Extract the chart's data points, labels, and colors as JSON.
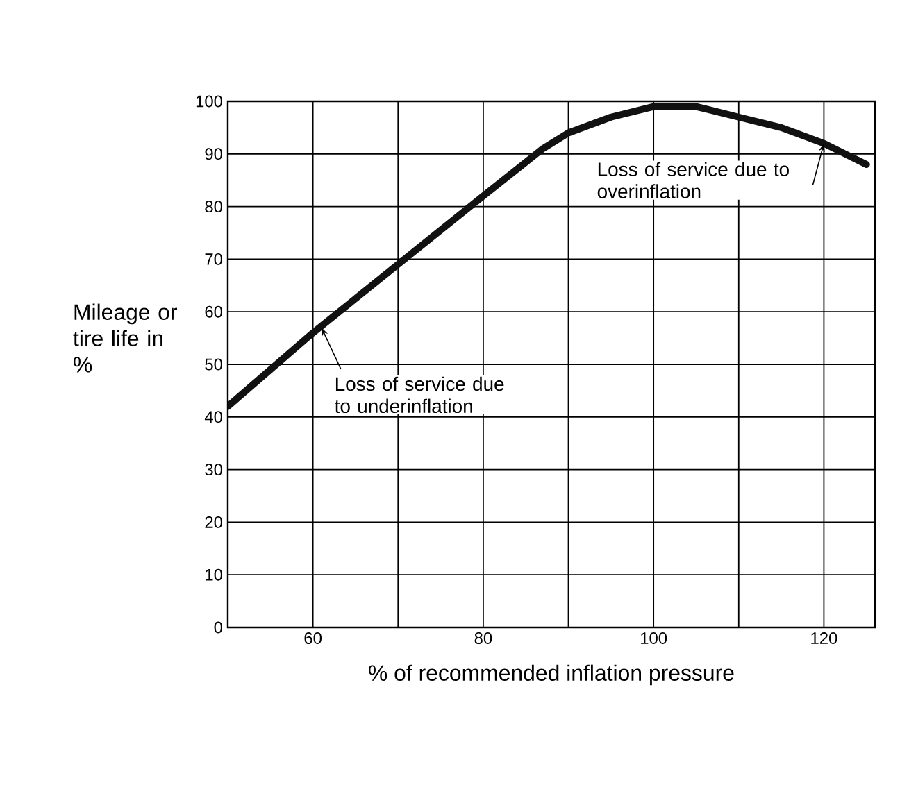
{
  "chart_data": {
    "type": "line",
    "xlabel": "% of recommended inflation pressure",
    "ylabel": "Mileage or tire life in %",
    "x": [
      50,
      60,
      70,
      80,
      87,
      90,
      95,
      100,
      105,
      110,
      115,
      120,
      125
    ],
    "values": [
      42,
      56,
      69,
      82,
      91,
      94,
      97,
      99,
      99,
      97,
      95,
      92,
      88
    ],
    "color": "#111111",
    "marker": "none",
    "line_style": "solid",
    "xlim": [
      50,
      126
    ],
    "xticks": [
      {
        "value": 50,
        "label": null
      },
      60,
      {
        "value": 70,
        "label": null
      },
      80,
      {
        "value": 90,
        "label": null
      },
      100,
      {
        "value": 110,
        "label": null
      },
      120
    ],
    "ylim": [
      0,
      100
    ],
    "yticks": [
      0,
      10,
      20,
      30,
      40,
      50,
      60,
      70,
      80,
      90,
      100
    ],
    "grid": true,
    "annotations": [
      {
        "text": "Loss of service due to underinflation",
        "x": 61,
        "y": 57
      },
      {
        "text": "Loss of service due to overinflation",
        "x": 120,
        "y": 92
      }
    ]
  }
}
